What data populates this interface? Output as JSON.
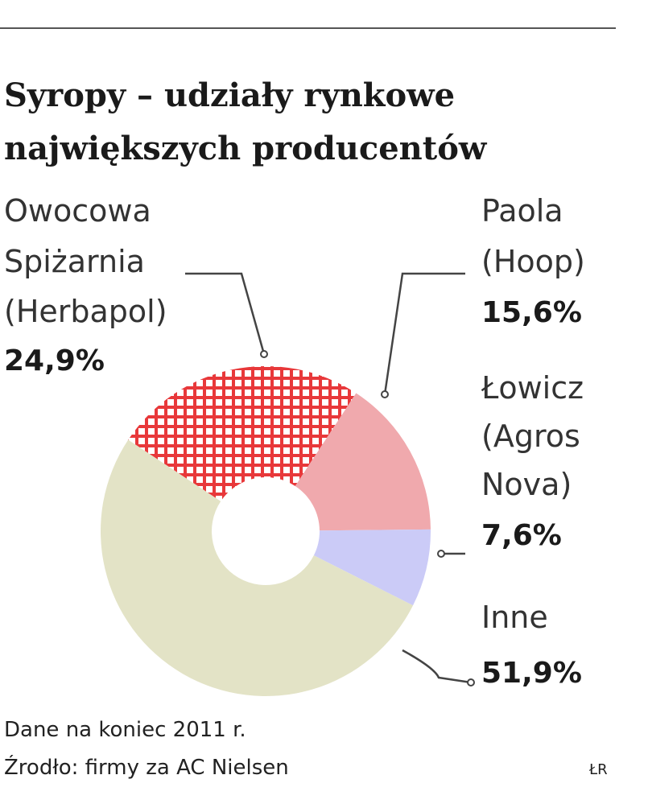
{
  "chart_data": {
    "type": "pie",
    "title": [
      "Syropy – udziały rynkowe",
      "największych producentów"
    ],
    "categories": [
      [
        "Owocowa",
        "Spiżarnia",
        "(Herbapol)"
      ],
      [
        "Paola",
        "(Hoop)"
      ],
      [
        "Łowicz",
        "(Agros",
        "Nova)"
      ],
      [
        "Inne"
      ]
    ],
    "values": [
      24.9,
      15.6,
      7.6,
      51.9
    ],
    "value_labels": [
      "24,9%",
      "15,6%",
      "7,6%",
      "51,9%"
    ],
    "colors": [
      "#e8383a",
      "#f0a9ad",
      "#cbcbf7",
      "#e3e3c6"
    ],
    "note": "Dane na koniec 2011 r.",
    "source": "Źrodło: firmy za AC Nielsen",
    "credit": "ŁR"
  }
}
